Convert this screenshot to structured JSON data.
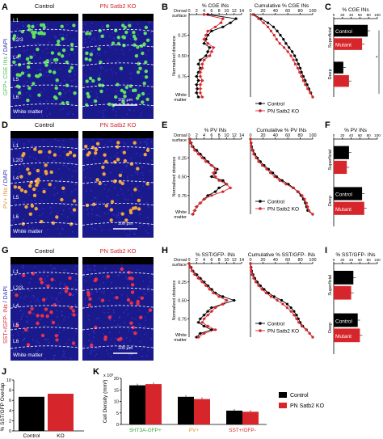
{
  "colors": {
    "control": "#000000",
    "mutant": "#d7262b",
    "micro_bg": "#1a1a8c",
    "dapi_dot": "#3b3bd6",
    "gfp": "#5fe05f",
    "pv": "#f2a53a",
    "sst": "#e8304a",
    "col_ctrl_title": "#000000",
    "col_ko_title": "#d7262b",
    "label_white": "#ffffff",
    "sep_line": "#ffffff",
    "side_label_gfp": "#4fbf4f",
    "side_label_pv": "#e8902a",
    "side_label_sst": "#d7262b",
    "side_label_dapi": "#2a2ab0",
    "k_green": "#3aa53a",
    "k_orange": "#e8902a",
    "k_red": "#d7262b"
  },
  "panels": {
    "A": "A",
    "B": "B",
    "C": "C",
    "D": "D",
    "E": "E",
    "F": "F",
    "G": "G",
    "H": "H",
    "I": "I",
    "J": "J",
    "K": "K"
  },
  "micro": {
    "col_control": "Control",
    "col_ko": "PN Satb2 KO",
    "white_matter": "White matter",
    "scale": "100 μm",
    "rows": [
      {
        "side_a": "GFP+ CGE INs",
        "side_b": " / DAPI",
        "layers": [
          "L1",
          "L2/3",
          "L4",
          "L5",
          "L6"
        ]
      },
      {
        "side_a": "PV+ INs",
        "side_b": " / DAPI",
        "layers": [
          "L1",
          "L2/3",
          "L4",
          "L5",
          "L6"
        ]
      },
      {
        "side_a": "SST+/GFP- INs",
        "side_b": " / DAPI",
        "layers": [
          "L1",
          "L2/3",
          "L4",
          "L5",
          "L6"
        ]
      }
    ]
  },
  "profile_axis": {
    "top_label_1": "Dorsal",
    "top_label_2": "surface",
    "bottom_label_1": "White",
    "bottom_label_2": "matter",
    "ylabel": "Normalized distance",
    "yticks": [
      "0.25",
      "0.50",
      "0.75"
    ]
  },
  "legend": {
    "control": "Control",
    "ko": "PN Satb2 KO"
  },
  "bar_axis": {
    "superficial": "Superficial",
    "deep": "Deep",
    "control": "Control",
    "mutant": "Mutant",
    "star": "*"
  },
  "chart_data": [
    {
      "panel": "B",
      "type": "line",
      "title": "% CGE INs",
      "xlim": [
        0,
        14
      ],
      "xticks": [
        "0",
        "2",
        "4",
        "6",
        "8",
        "10",
        "12",
        "14"
      ],
      "y": [
        0.0,
        0.05,
        0.1,
        0.15,
        0.2,
        0.25,
        0.3,
        0.35,
        0.4,
        0.45,
        0.5,
        0.55,
        0.6,
        0.65,
        0.7,
        0.75,
        0.8,
        0.85,
        0.9,
        0.95,
        1.0
      ],
      "series": [
        {
          "name": "Control",
          "values": [
            5,
            12.5,
            11,
            9,
            6,
            5,
            4.5,
            4,
            5.5,
            5,
            4.5,
            3,
            2.5,
            3,
            2.5,
            2,
            2.5,
            2,
            2.2,
            2,
            2.5
          ]
        },
        {
          "name": "PN Satb2 KO",
          "values": [
            4,
            9,
            8.5,
            7,
            5,
            4.5,
            4,
            5,
            6.5,
            6,
            5.5,
            4,
            3.5,
            3.5,
            3,
            3,
            3.5,
            3,
            3,
            3,
            3.5
          ]
        }
      ]
    },
    {
      "panel": "B2",
      "type": "line",
      "title": "Cumulative % CGE INs",
      "xlim": [
        0,
        100
      ],
      "xticks": [
        "0",
        "20",
        "40",
        "60",
        "80",
        "100"
      ],
      "y": [
        0.0,
        0.05,
        0.1,
        0.15,
        0.2,
        0.25,
        0.3,
        0.35,
        0.4,
        0.45,
        0.5,
        0.55,
        0.6,
        0.65,
        0.7,
        0.75,
        0.8,
        0.85,
        0.9,
        0.95,
        1.0
      ],
      "series": [
        {
          "name": "Control",
          "values": [
            5,
            17,
            28,
            37,
            43,
            48,
            53,
            57,
            62,
            67,
            71,
            74,
            77,
            80,
            82,
            85,
            88,
            91,
            94,
            97,
            100
          ]
        },
        {
          "name": "PN Satb2 KO",
          "values": [
            4,
            13,
            21,
            28,
            33,
            38,
            42,
            47,
            54,
            60,
            65,
            69,
            72,
            76,
            79,
            82,
            85,
            88,
            92,
            96,
            100
          ]
        }
      ]
    },
    {
      "panel": "C",
      "type": "bar",
      "title": "% CGE INs",
      "xlim": [
        0,
        100
      ],
      "xticks": [
        "0",
        "20",
        "40",
        "60",
        "80",
        "100"
      ],
      "categories": [
        "Superficial",
        "Deep"
      ],
      "series": [
        {
          "name": "Control",
          "values": [
            78,
            22
          ]
        },
        {
          "name": "Mutant",
          "values": [
            65,
            35
          ]
        }
      ]
    },
    {
      "panel": "E",
      "type": "line",
      "title": "% PV INs",
      "xlim": [
        0,
        14
      ],
      "xticks": [
        "0",
        "2",
        "4",
        "6",
        "8",
        "10",
        "12",
        "14"
      ],
      "y": [
        0.0,
        0.05,
        0.1,
        0.15,
        0.2,
        0.25,
        0.3,
        0.35,
        0.4,
        0.45,
        0.5,
        0.55,
        0.6,
        0.65,
        0.7,
        0.75,
        0.8,
        0.85,
        0.9,
        0.95,
        1.0
      ],
      "series": [
        {
          "name": "Control",
          "values": [
            0.2,
            0.5,
            1,
            2,
            3,
            4,
            5,
            6,
            7.5,
            7,
            6,
            9,
            10,
            8,
            7,
            5,
            4,
            3,
            2,
            1.5,
            1
          ]
        },
        {
          "name": "PN Satb2 KO",
          "values": [
            0.2,
            0.3,
            0.8,
            1.5,
            2.5,
            3.5,
            4.5,
            6,
            7,
            6.5,
            7,
            8,
            10,
            11,
            9,
            6,
            4,
            3,
            2,
            1.5,
            1
          ]
        }
      ]
    },
    {
      "panel": "E2",
      "type": "line",
      "title": "Cumulative % PV INs",
      "xlim": [
        0,
        100
      ],
      "xticks": [
        "0",
        "20",
        "40",
        "60",
        "80",
        "100"
      ],
      "y": [
        0.0,
        0.05,
        0.1,
        0.15,
        0.2,
        0.25,
        0.3,
        0.35,
        0.4,
        0.45,
        0.5,
        0.55,
        0.6,
        0.65,
        0.7,
        0.75,
        0.8,
        0.85,
        0.9,
        0.95,
        1.0
      ],
      "series": [
        {
          "name": "Control",
          "values": [
            0,
            1,
            2,
            4,
            7,
            11,
            16,
            22,
            29,
            36,
            42,
            51,
            61,
            69,
            76,
            81,
            85,
            88,
            90,
            92,
            100
          ]
        },
        {
          "name": "PN Satb2 KO",
          "values": [
            0,
            0.5,
            1,
            3,
            5,
            9,
            13,
            19,
            26,
            32,
            39,
            47,
            57,
            68,
            77,
            83,
            87,
            90,
            92,
            94,
            100
          ]
        }
      ]
    },
    {
      "panel": "F",
      "type": "bar",
      "title": "% PV INs",
      "xlim": [
        0,
        100
      ],
      "xticks": [
        "0",
        "20",
        "40",
        "60",
        "80",
        "100"
      ],
      "categories": [
        "Superficial",
        "Deep"
      ],
      "series": [
        {
          "name": "Control",
          "values": [
            35,
            65
          ]
        },
        {
          "name": "Mutant",
          "values": [
            30,
            70
          ]
        }
      ]
    },
    {
      "panel": "H",
      "type": "line",
      "title": "% SST/GFP- INs",
      "xlim": [
        0,
        14
      ],
      "xticks": [
        "0",
        "2",
        "4",
        "6",
        "8",
        "10",
        "12",
        "14"
      ],
      "y": [
        0.0,
        0.05,
        0.1,
        0.15,
        0.2,
        0.25,
        0.3,
        0.35,
        0.4,
        0.45,
        0.5,
        0.55,
        0.6,
        0.65,
        0.7,
        0.75,
        0.8,
        0.85,
        0.9,
        0.95,
        1.0
      ],
      "series": [
        {
          "name": "Control",
          "values": [
            0,
            0.5,
            1,
            2,
            3,
            4,
            5,
            6,
            7,
            9,
            12,
            9,
            6,
            5,
            4,
            3,
            2.5,
            4,
            6,
            3,
            2
          ]
        },
        {
          "name": "PN Satb2 KO",
          "values": [
            0,
            0.3,
            0.8,
            1.5,
            2.5,
            3.5,
            4.5,
            5.5,
            6.5,
            8,
            10,
            9,
            7,
            6,
            5,
            4,
            3.5,
            5,
            7,
            4,
            2.5
          ]
        }
      ]
    },
    {
      "panel": "H2",
      "type": "line",
      "title": "Cumulative % SST/GFP- INs",
      "xlim": [
        0,
        100
      ],
      "xticks": [
        "0",
        "20",
        "40",
        "60",
        "80",
        "100"
      ],
      "y": [
        0.0,
        0.05,
        0.1,
        0.15,
        0.2,
        0.25,
        0.3,
        0.35,
        0.4,
        0.45,
        0.5,
        0.55,
        0.6,
        0.65,
        0.7,
        0.75,
        0.8,
        0.85,
        0.9,
        0.95,
        1.0
      ],
      "series": [
        {
          "name": "Control",
          "values": [
            0,
            1,
            2,
            4,
            7,
            11,
            16,
            22,
            29,
            38,
            50,
            59,
            65,
            70,
            74,
            77,
            80,
            84,
            90,
            95,
            100
          ]
        },
        {
          "name": "PN Satb2 KO",
          "values": [
            0,
            0.5,
            1,
            2.5,
            5,
            8.5,
            13,
            18.5,
            25,
            33,
            43,
            52,
            59,
            65,
            70,
            74,
            77.5,
            82.5,
            89.5,
            95,
            100
          ]
        }
      ]
    },
    {
      "panel": "I",
      "type": "bar",
      "title": "% SST/GFP- INs",
      "xlim": [
        0,
        100
      ],
      "xticks": [
        "0",
        "20",
        "40",
        "60",
        "80",
        "100"
      ],
      "categories": [
        "Superficial",
        "Deep"
      ],
      "series": [
        {
          "name": "Control",
          "values": [
            45,
            55
          ]
        },
        {
          "name": "Mutant",
          "values": [
            40,
            60
          ]
        }
      ]
    },
    {
      "panel": "J",
      "type": "bar",
      "ylabel": "% SST/GFP Overlap",
      "ylim": [
        0,
        10
      ],
      "yticks": [
        "0",
        "2",
        "4",
        "6",
        "8",
        "10"
      ],
      "categories": [
        "Control",
        "KO"
      ],
      "values": [
        6.7,
        7.3
      ]
    },
    {
      "panel": "K",
      "type": "bar",
      "ylabel": "Cell Density (mm³)",
      "ylim": [
        0,
        20
      ],
      "yticks": [
        "0",
        "5",
        "10",
        "15",
        "20"
      ],
      "yunit": "x 10³",
      "categories": [
        "5HT3A-GFP+",
        "PV+",
        "SST+/GFP-"
      ],
      "series": [
        {
          "name": "Control",
          "values": [
            17,
            12,
            6
          ]
        },
        {
          "name": "PN Satb2 KO",
          "values": [
            17.5,
            11,
            5.5
          ]
        }
      ]
    }
  ]
}
